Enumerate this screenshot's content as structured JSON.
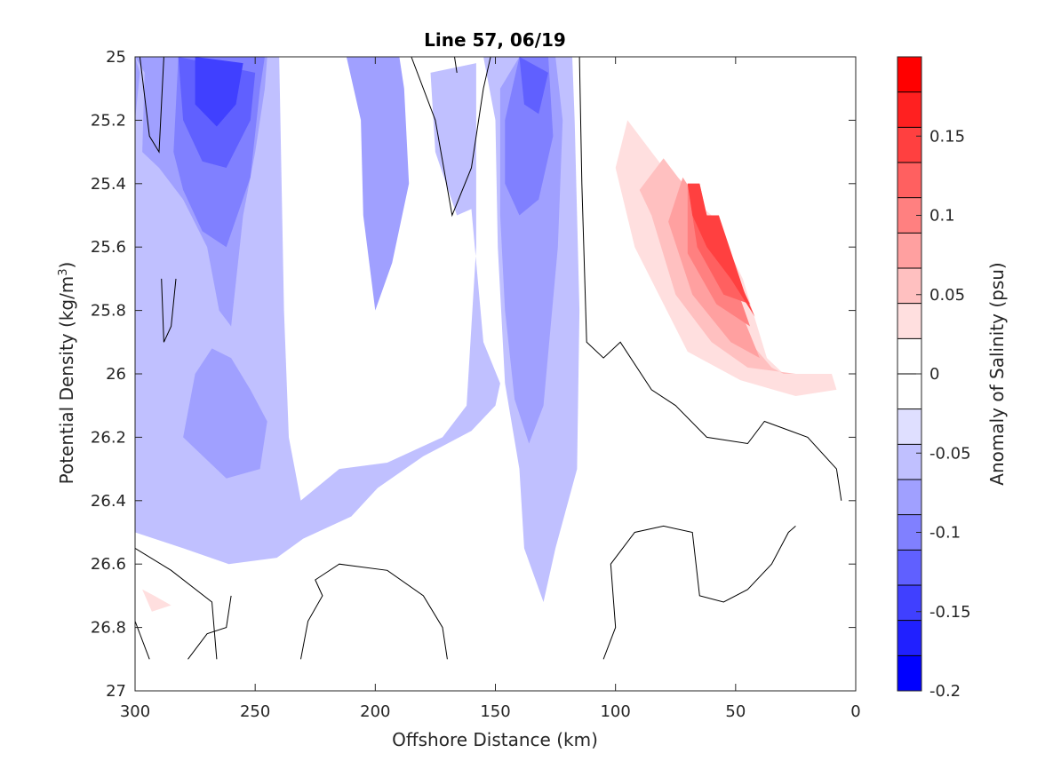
{
  "chart_data": {
    "type": "heatmap",
    "title": "Line 57, 06/19",
    "xlabel": "Offshore Distance (km)",
    "ylabel_main": "Potential Density (kg/m",
    "ylabel_sup": "3",
    "ylabel_end": ")",
    "xlim": [
      300,
      0
    ],
    "ylim": [
      25,
      27
    ],
    "y_reversed": true,
    "x_ticks": [
      300,
      250,
      200,
      150,
      100,
      50,
      0
    ],
    "x_tick_labels": [
      "300",
      "250",
      "200",
      "150",
      "100",
      "50",
      "0"
    ],
    "y_ticks": [
      25,
      25.2,
      25.4,
      25.6,
      25.8,
      26,
      26.2,
      26.4,
      26.6,
      26.8,
      27
    ],
    "y_tick_labels": [
      "25",
      "25.2",
      "25.4",
      "25.6",
      "25.8",
      "26",
      "26.2",
      "26.4",
      "26.6",
      "26.8",
      "27"
    ],
    "colorbar": {
      "label": "Anomaly of Salinity (psu)",
      "range": [
        -0.2,
        0.2
      ],
      "step": 0.025,
      "tick_values": [
        0.15,
        0.1,
        0.05,
        0,
        -0.05,
        -0.1,
        -0.15,
        -0.2
      ],
      "tick_labels": [
        "0.15",
        "0.1",
        "0.05",
        "0",
        "-0.05",
        "-0.1",
        "-0.15",
        "-0.2"
      ],
      "colors": [
        "#0000ff",
        "#2020ff",
        "#4040ff",
        "#6060ff",
        "#8080ff",
        "#a0a0ff",
        "#c0c0ff",
        "#dfdfff",
        "#ffffff",
        "#ffffff",
        "#ffdfdf",
        "#ffc0c0",
        "#ffa0a0",
        "#ff8080",
        "#ff6060",
        "#ff4040",
        "#ff2020",
        "#ff0000"
      ]
    },
    "regions": [
      {
        "level": -0.05,
        "points": [
          [
            300,
            25
          ],
          [
            260,
            25
          ],
          [
            240,
            25
          ],
          [
            238,
            25.8
          ],
          [
            236,
            26.2
          ],
          [
            231,
            26.4
          ],
          [
            215,
            26.3
          ],
          [
            195,
            26.28
          ],
          [
            172,
            26.2
          ],
          [
            162,
            26.1
          ],
          [
            158,
            25.6
          ],
          [
            158,
            25.02
          ],
          [
            177,
            25.05
          ],
          [
            175,
            25.3
          ],
          [
            166,
            25.5
          ],
          [
            160,
            25.48
          ],
          [
            155,
            25.9
          ],
          [
            148,
            26.03
          ],
          [
            150,
            26.1
          ],
          [
            160,
            26.18
          ],
          [
            180,
            26.26
          ],
          [
            199,
            26.36
          ],
          [
            210,
            26.45
          ],
          [
            230,
            26.52
          ],
          [
            241,
            26.58
          ],
          [
            261,
            26.6
          ],
          [
            280,
            26.55
          ],
          [
            300,
            26.5
          ]
        ]
      },
      {
        "level": -0.05,
        "points": [
          [
            155,
            25
          ],
          [
            150,
            25.2
          ],
          [
            149,
            25.6
          ],
          [
            146,
            26.03
          ],
          [
            140,
            26.3
          ],
          [
            138,
            26.55
          ],
          [
            130,
            26.72
          ],
          [
            125,
            26.55
          ],
          [
            116,
            26.3
          ],
          [
            115,
            25.8
          ],
          [
            117,
            25.2
          ],
          [
            118,
            25
          ]
        ]
      },
      {
        "level": 0.025,
        "points": [
          [
            293,
            25.02
          ],
          [
            290,
            25.02
          ],
          [
            288,
            25.08
          ],
          [
            290,
            25.15
          ],
          [
            293,
            25.1
          ]
        ]
      },
      {
        "level": 0.025,
        "points": [
          [
            100,
            25.04
          ],
          [
            90,
            25.08
          ],
          [
            75,
            25.28
          ],
          [
            65,
            25.4
          ],
          [
            55,
            25.55
          ],
          [
            45,
            25.85
          ],
          [
            35,
            26
          ],
          [
            20,
            26
          ],
          [
            5,
            26.02
          ],
          [
            0,
            26.0
          ],
          [
            5,
            26.1
          ],
          [
            20,
            26.12
          ],
          [
            40,
            26.12
          ],
          [
            55,
            26.05
          ],
          [
            70,
            26.0
          ],
          [
            90,
            25.85
          ],
          [
            110,
            25.7
          ],
          [
            112,
            25.4
          ],
          [
            110,
            25.1
          ]
        ]
      },
      {
        "level": 0.025,
        "points": [
          [
            300,
            26.64
          ],
          [
            295,
            26.62
          ],
          [
            285,
            26.68
          ],
          [
            280,
            26.75
          ],
          [
            290,
            26.8
          ],
          [
            300,
            26.8
          ]
        ]
      },
      {
        "level": 0.025,
        "points": [
          [
            24,
            26.35
          ],
          [
            25,
            26.42
          ],
          [
            30,
            26.42
          ]
        ]
      },
      {
        "level": -0.075,
        "points": [
          [
            300,
            25.0
          ],
          [
            296,
            25.05
          ],
          [
            297,
            25.3
          ],
          [
            290,
            25.35
          ],
          [
            280,
            25.45
          ],
          [
            270,
            25.6
          ],
          [
            265,
            25.8
          ],
          [
            260,
            25.85
          ],
          [
            255,
            25.5
          ],
          [
            250,
            25.3
          ],
          [
            246,
            25.1
          ],
          [
            245,
            25.0
          ]
        ]
      },
      {
        "level": -0.075,
        "points": [
          [
            280,
            26.2
          ],
          [
            275,
            26.0
          ],
          [
            268,
            25.92
          ],
          [
            260,
            25.95
          ],
          [
            252,
            26.05
          ],
          [
            245,
            26.15
          ],
          [
            248,
            26.3
          ],
          [
            262,
            26.33
          ]
        ]
      },
      {
        "level": -0.075,
        "points": [
          [
            212,
            25.0
          ],
          [
            206,
            25.2
          ],
          [
            205,
            25.5
          ],
          [
            200,
            25.8
          ],
          [
            193,
            25.65
          ],
          [
            186,
            25.4
          ],
          [
            188,
            25.1
          ],
          [
            190,
            25.0
          ]
        ]
      },
      {
        "level": -0.075,
        "points": [
          [
            140,
            25.0
          ],
          [
            148,
            25.1
          ],
          [
            148,
            25.5
          ],
          [
            146,
            25.8
          ],
          [
            142,
            26.08
          ],
          [
            136,
            26.22
          ],
          [
            130,
            26.1
          ],
          [
            124,
            25.6
          ],
          [
            122,
            25.2
          ],
          [
            125,
            25.0
          ]
        ]
      },
      {
        "level": -0.075,
        "points": [
          [
            300,
            25.0
          ],
          [
            300,
            25.2
          ],
          [
            298,
            25.05
          ]
        ]
      },
      {
        "level": 0.05,
        "points": [
          [
            95,
            25.2
          ],
          [
            85,
            25.3
          ],
          [
            75,
            25.4
          ],
          [
            60,
            25.5
          ],
          [
            47,
            25.7
          ],
          [
            37,
            25.95
          ],
          [
            30,
            26.0
          ],
          [
            10,
            26.0
          ],
          [
            8,
            26.05
          ],
          [
            25,
            26.07
          ],
          [
            48,
            26.02
          ],
          [
            70,
            25.93
          ],
          [
            92,
            25.6
          ],
          [
            100,
            25.35
          ]
        ]
      },
      {
        "level": 0.05,
        "points": [
          [
            297,
            26.68
          ],
          [
            292,
            26.7
          ],
          [
            285,
            26.73
          ],
          [
            293,
            26.75
          ]
        ]
      },
      {
        "level": -0.1,
        "points": [
          [
            282,
            25.0
          ],
          [
            284,
            25.3
          ],
          [
            280,
            25.42
          ],
          [
            272,
            25.55
          ],
          [
            262,
            25.6
          ],
          [
            252,
            25.38
          ],
          [
            248,
            25.1
          ],
          [
            246,
            25.0
          ]
        ]
      },
      {
        "level": -0.1,
        "points": [
          [
            140,
            25.0
          ],
          [
            146,
            25.2
          ],
          [
            146,
            25.4
          ],
          [
            140,
            25.5
          ],
          [
            132,
            25.45
          ],
          [
            126,
            25.25
          ],
          [
            128,
            25.0
          ]
        ]
      },
      {
        "level": 0.075,
        "points": [
          [
            80,
            25.32
          ],
          [
            74,
            25.38
          ],
          [
            66,
            25.45
          ],
          [
            52,
            25.7
          ],
          [
            44,
            25.9
          ],
          [
            35,
            25.98
          ],
          [
            30,
            26.0
          ],
          [
            25,
            26.0
          ],
          [
            45,
            25.98
          ],
          [
            60,
            25.9
          ],
          [
            75,
            25.75
          ],
          [
            85,
            25.5
          ],
          [
            90,
            25.42
          ]
        ]
      },
      {
        "level": -0.125,
        "points": [
          [
            282,
            25.0
          ],
          [
            280,
            25.2
          ],
          [
            272,
            25.33
          ],
          [
            262,
            25.35
          ],
          [
            252,
            25.2
          ],
          [
            250,
            25.05
          ]
        ]
      },
      {
        "level": -0.125,
        "points": [
          [
            140,
            25.0
          ],
          [
            138,
            25.15
          ],
          [
            132,
            25.18
          ],
          [
            128,
            25.05
          ]
        ]
      },
      {
        "level": 0.1,
        "points": [
          [
            72,
            25.38
          ],
          [
            66,
            25.45
          ],
          [
            56,
            25.62
          ],
          [
            48,
            25.8
          ],
          [
            40,
            25.95
          ],
          [
            52,
            25.9
          ],
          [
            68,
            25.75
          ],
          [
            78,
            25.52
          ]
        ]
      },
      {
        "level": -0.15,
        "points": [
          [
            275,
            25.0
          ],
          [
            275,
            25.15
          ],
          [
            266,
            25.22
          ],
          [
            258,
            25.15
          ],
          [
            255,
            25.02
          ]
        ]
      },
      {
        "level": 0.125,
        "points": [
          [
            70,
            25.4
          ],
          [
            62,
            25.5
          ],
          [
            50,
            25.72
          ],
          [
            44,
            25.85
          ],
          [
            58,
            25.78
          ],
          [
            70,
            25.62
          ]
        ]
      },
      {
        "level": 0.15,
        "points": [
          [
            70,
            25.4
          ],
          [
            65,
            25.4
          ],
          [
            62,
            25.5
          ],
          [
            57,
            25.5
          ],
          [
            52,
            25.65
          ],
          [
            44,
            25.78
          ],
          [
            55,
            25.75
          ],
          [
            66,
            25.6
          ]
        ]
      },
      {
        "level": 0.175,
        "points": [
          [
            70,
            25.4
          ],
          [
            65,
            25.4
          ],
          [
            62,
            25.5
          ],
          [
            57,
            25.5
          ],
          [
            46,
            25.75
          ],
          [
            42,
            25.82
          ],
          [
            52,
            25.7
          ],
          [
            62,
            25.6
          ],
          [
            68,
            25.5
          ]
        ]
      }
    ],
    "contour_lines": [
      [
        [
          298,
          25.0
        ],
        [
          294,
          25.25
        ],
        [
          290,
          25.3
        ],
        [
          288,
          25.0
        ]
      ],
      [
        [
          289,
          25.7
        ],
        [
          288,
          25.9
        ],
        [
          285,
          25.85
        ],
        [
          283,
          25.7
        ]
      ],
      [
        [
          185,
          25.0
        ],
        [
          175,
          25.2
        ],
        [
          168,
          25.5
        ],
        [
          160,
          25.35
        ],
        [
          155,
          25.1
        ],
        [
          152,
          25.0
        ]
      ],
      [
        [
          167,
          25.0
        ],
        [
          166,
          25.05
        ]
      ],
      [
        [
          115,
          25.0
        ],
        [
          114,
          25.4
        ],
        [
          112,
          25.9
        ],
        [
          105,
          25.95
        ],
        [
          98,
          25.9
        ],
        [
          85,
          26.05
        ],
        [
          75,
          26.1
        ],
        [
          62,
          26.2
        ],
        [
          45,
          26.22
        ],
        [
          38,
          26.15
        ],
        [
          20,
          26.2
        ],
        [
          8,
          26.3
        ],
        [
          6,
          26.4
        ]
      ],
      [
        [
          300,
          26.55
        ],
        [
          285,
          26.62
        ],
        [
          268,
          26.72
        ],
        [
          266,
          26.9
        ]
      ],
      [
        [
          300,
          26.78
        ],
        [
          294,
          26.9
        ]
      ],
      [
        [
          278,
          26.9
        ],
        [
          270,
          26.82
        ],
        [
          262,
          26.8
        ],
        [
          260,
          26.7
        ]
      ],
      [
        [
          231,
          26.9
        ],
        [
          228,
          26.78
        ],
        [
          222,
          26.7
        ],
        [
          225,
          26.65
        ],
        [
          215,
          26.6
        ],
        [
          195,
          26.62
        ],
        [
          180,
          26.7
        ],
        [
          172,
          26.8
        ],
        [
          170,
          26.9
        ]
      ],
      [
        [
          105,
          26.9
        ],
        [
          100,
          26.8
        ],
        [
          102,
          26.6
        ],
        [
          92,
          26.5
        ],
        [
          80,
          26.48
        ],
        [
          68,
          26.5
        ],
        [
          65,
          26.7
        ],
        [
          55,
          26.72
        ],
        [
          45,
          26.68
        ],
        [
          35,
          26.6
        ],
        [
          28,
          26.5
        ],
        [
          25,
          26.48
        ]
      ]
    ]
  }
}
